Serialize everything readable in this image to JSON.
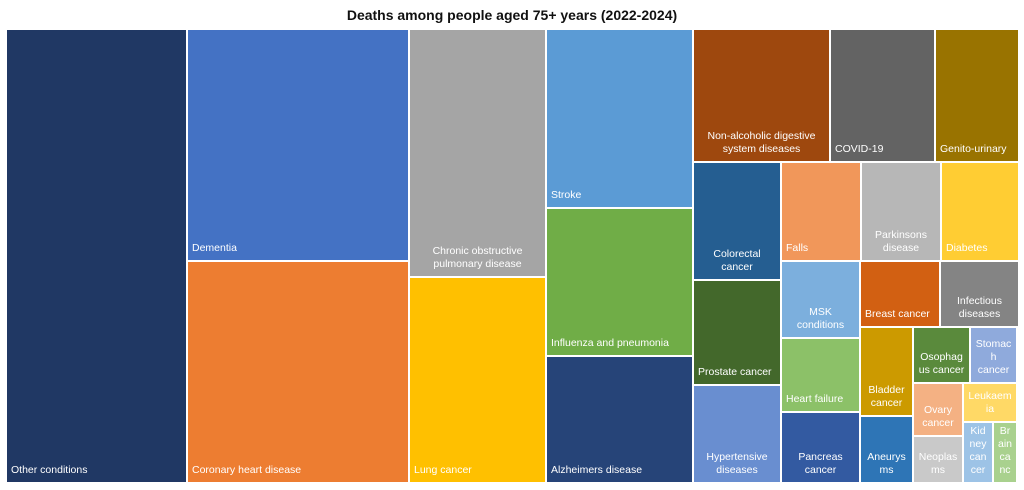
{
  "chart_data": {
    "type": "treemap",
    "title": "Deaths among people aged 75+ years (2022-2024)",
    "items": [
      {
        "label": "Other conditions",
        "color": "#203864"
      },
      {
        "label": "Dementia",
        "color": "#4472C4"
      },
      {
        "label": "Coronary heart disease",
        "color": "#ED7D31"
      },
      {
        "label": "Chronic obstructive pulmonary disease",
        "color": "#A5A5A5"
      },
      {
        "label": "Lung cancer",
        "color": "#FFC000"
      },
      {
        "label": "Stroke",
        "color": "#5B9BD5"
      },
      {
        "label": "Influenza and pneumonia",
        "color": "#70AD47"
      },
      {
        "label": "Alzheimers disease",
        "color": "#264478"
      },
      {
        "label": "Non-alcoholic digestive system diseases",
        "color": "#9E480E"
      },
      {
        "label": "COVID-19",
        "color": "#636363"
      },
      {
        "label": "Genito-urinary",
        "color": "#997300"
      },
      {
        "label": "Colorectal cancer",
        "color": "#255E91"
      },
      {
        "label": "Prostate cancer",
        "color": "#43682B"
      },
      {
        "label": "Hypertensive diseases",
        "color": "#698ED0"
      },
      {
        "label": "Falls",
        "color": "#F1975A"
      },
      {
        "label": "Parkinsons disease",
        "color": "#B7B7B7"
      },
      {
        "label": "Diabetes",
        "color": "#FFCD33"
      },
      {
        "label": "MSK conditions",
        "color": "#7CAFDD"
      },
      {
        "label": "Heart failure",
        "color": "#8CC168"
      },
      {
        "label": "Pancreas cancer",
        "color": "#335AA1"
      },
      {
        "label": "Breast cancer",
        "color": "#D26012"
      },
      {
        "label": "Infectious diseases",
        "color": "#848484"
      },
      {
        "label": "Bladder cancer",
        "color": "#CC9A00"
      },
      {
        "label": "Aneurysms",
        "color": "#2E75B6"
      },
      {
        "label": "Osophagus cancer",
        "color": "#5A8A3C"
      },
      {
        "label": "Stomach cancer",
        "color": "#8FAADC"
      },
      {
        "label": "Ovary cancer",
        "color": "#F4B183"
      },
      {
        "label": "Neoplasms",
        "color": "#C9C9C9"
      },
      {
        "label": "Leukaemia",
        "color": "#FFD966"
      },
      {
        "label": "Kidney cancer",
        "color": "#9DC3E6"
      },
      {
        "label": "Brain canc",
        "color": "#A9D18E"
      }
    ]
  }
}
